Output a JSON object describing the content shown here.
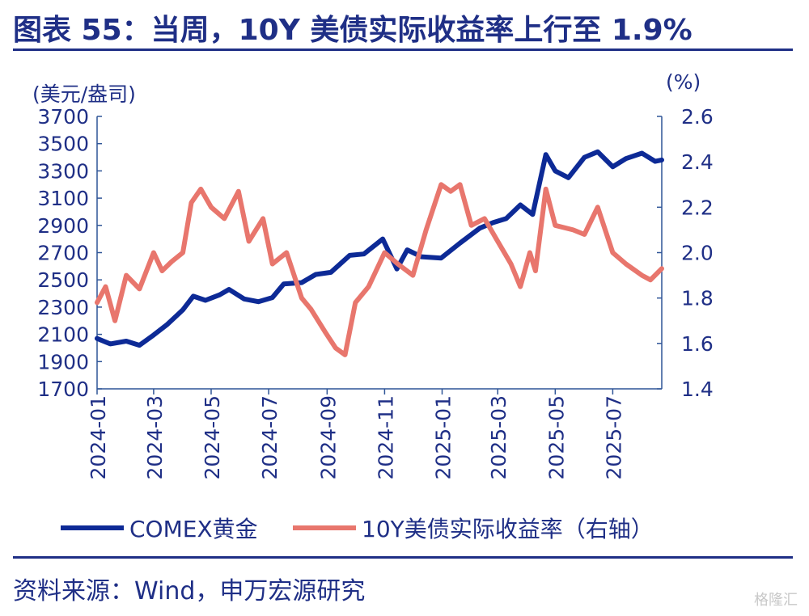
{
  "title": "图表 55：当周，10Y 美债实际收益率上行至 1.9%",
  "source": "资料来源：Wind，申万宏源研究",
  "watermark": "格隆汇",
  "colors": {
    "gold": "#0d2a96",
    "yield": "#e8766d",
    "text": "#1f2f86",
    "axis": "#2f5597"
  },
  "chart_data": {
    "type": "line",
    "left_axis_label": "(美元/盎司)",
    "right_axis_label": "(%)",
    "left_ylim": [
      1700,
      3700
    ],
    "right_ylim": [
      1.4,
      2.6
    ],
    "left_ticks": [
      "3700",
      "3500",
      "3300",
      "3100",
      "2900",
      "2700",
      "2500",
      "2300",
      "2100",
      "1900",
      "1700"
    ],
    "right_ticks": [
      "2.6",
      "2.4",
      "2.2",
      "2.0",
      "1.8",
      "1.6",
      "1.4"
    ],
    "x_ticks": [
      "2024-01",
      "2024-03",
      "2024-05",
      "2024-07",
      "2024-09",
      "2024-11",
      "2025-01",
      "2025-03",
      "2025-05",
      "2025-07"
    ],
    "x_range": [
      "2024-01-01",
      "2025-08-22"
    ],
    "series": [
      {
        "name": "COMEX黄金",
        "axis": "left",
        "color": "#0d2a96",
        "x": [
          "2024-01-01",
          "2024-01-15",
          "2024-02-01",
          "2024-02-15",
          "2024-03-01",
          "2024-03-15",
          "2024-04-01",
          "2024-04-12",
          "2024-04-25",
          "2024-05-10",
          "2024-05-20",
          "2024-06-05",
          "2024-06-20",
          "2024-07-05",
          "2024-07-17",
          "2024-08-05",
          "2024-08-20",
          "2024-09-05",
          "2024-09-25",
          "2024-10-10",
          "2024-10-30",
          "2024-11-14",
          "2024-11-25",
          "2024-12-10",
          "2024-12-31",
          "2025-01-20",
          "2025-02-10",
          "2025-02-24",
          "2025-03-10",
          "2025-03-25",
          "2025-04-07",
          "2025-04-21",
          "2025-05-01",
          "2025-05-15",
          "2025-06-01",
          "2025-06-15",
          "2025-07-01",
          "2025-07-15",
          "2025-08-01",
          "2025-08-15",
          "2025-08-22"
        ],
        "values": [
          2070,
          2030,
          2050,
          2020,
          2095,
          2170,
          2280,
          2380,
          2350,
          2390,
          2430,
          2360,
          2340,
          2370,
          2470,
          2480,
          2540,
          2555,
          2680,
          2690,
          2800,
          2580,
          2720,
          2670,
          2660,
          2770,
          2880,
          2920,
          2950,
          3050,
          2980,
          3420,
          3300,
          3250,
          3400,
          3440,
          3330,
          3390,
          3430,
          3370,
          3380
        ]
      },
      {
        "name": "10Y美债实际收益率（右轴）",
        "axis": "right",
        "color": "#e8766d",
        "x": [
          "2024-01-01",
          "2024-01-10",
          "2024-01-20",
          "2024-02-01",
          "2024-02-15",
          "2024-03-01",
          "2024-03-10",
          "2024-03-20",
          "2024-04-01",
          "2024-04-10",
          "2024-04-20",
          "2024-05-01",
          "2024-05-15",
          "2024-05-30",
          "2024-06-10",
          "2024-06-25",
          "2024-07-05",
          "2024-07-20",
          "2024-08-05",
          "2024-08-15",
          "2024-08-30",
          "2024-09-10",
          "2024-09-20",
          "2024-10-01",
          "2024-10-15",
          "2024-11-01",
          "2024-11-15",
          "2024-12-01",
          "2024-12-15",
          "2024-12-31",
          "2025-01-10",
          "2025-01-20",
          "2025-02-01",
          "2025-02-15",
          "2025-03-01",
          "2025-03-15",
          "2025-03-25",
          "2025-04-04",
          "2025-04-10",
          "2025-04-21",
          "2025-05-01",
          "2025-05-20",
          "2025-06-01",
          "2025-06-15",
          "2025-07-01",
          "2025-07-15",
          "2025-08-01",
          "2025-08-10",
          "2025-08-22"
        ],
        "values": [
          1.78,
          1.85,
          1.7,
          1.9,
          1.84,
          2.0,
          1.92,
          1.96,
          2.0,
          2.22,
          2.28,
          2.2,
          2.15,
          2.27,
          2.05,
          2.15,
          1.95,
          2.0,
          1.8,
          1.75,
          1.65,
          1.58,
          1.55,
          1.78,
          1.85,
          2.0,
          1.95,
          1.9,
          2.1,
          2.3,
          2.27,
          2.3,
          2.12,
          2.15,
          2.05,
          1.95,
          1.85,
          2.0,
          1.92,
          2.28,
          2.12,
          2.1,
          2.08,
          2.2,
          2.0,
          1.95,
          1.9,
          1.88,
          1.93
        ]
      }
    ]
  }
}
